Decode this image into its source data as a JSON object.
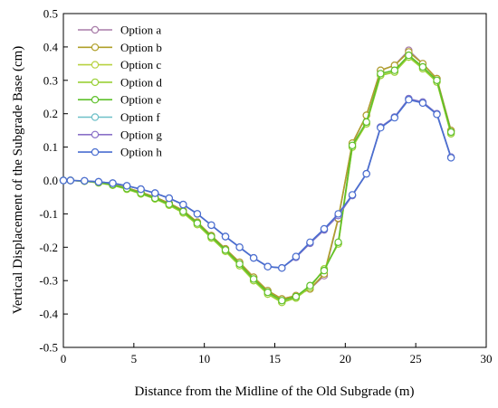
{
  "chart_data": {
    "type": "line",
    "title": "",
    "xlabel": "Distance from the Midline of the Old Subgrade (m)",
    "ylabel": "Vertical Displacement of the Subgrade Base (cm)",
    "xlim": [
      0,
      30
    ],
    "ylim": [
      -0.5,
      0.5
    ],
    "xticks": [
      0,
      5,
      10,
      15,
      20,
      25,
      30
    ],
    "yticks": [
      -0.5,
      -0.4,
      -0.3,
      -0.2,
      -0.1,
      0.0,
      0.1,
      0.2,
      0.3,
      0.4,
      0.5
    ],
    "ytick_labels": [
      "-0.5",
      "-0.4",
      "-0.3",
      "-0.2",
      "-0.1",
      "0.0",
      "0.1",
      "0.2",
      "0.3",
      "0.4",
      "0.5"
    ],
    "grid": false,
    "legend_position": "top-left",
    "x": [
      0,
      0.5,
      1.5,
      2.5,
      3.5,
      4.5,
      5.5,
      6.5,
      7.5,
      8.5,
      9.5,
      10.5,
      11.5,
      12.5,
      13.5,
      14.5,
      15.5,
      16.5,
      17.5,
      18.5,
      19.5,
      20.5,
      21.5,
      22.5,
      23.5,
      24.5,
      25.5,
      26.5,
      27.5
    ],
    "series": [
      {
        "name": "Option a",
        "color": "#a87ca8",
        "values": [
          0,
          0,
          -0.002,
          -0.006,
          -0.012,
          -0.022,
          -0.035,
          -0.05,
          -0.068,
          -0.09,
          -0.125,
          -0.165,
          -0.205,
          -0.245,
          -0.29,
          -0.33,
          -0.355,
          -0.345,
          -0.325,
          -0.285,
          -0.115,
          0.11,
          0.195,
          0.33,
          0.345,
          0.39,
          0.35,
          0.305,
          0.15
        ]
      },
      {
        "name": "Option b",
        "color": "#b0a02a",
        "values": [
          0,
          0,
          -0.002,
          -0.006,
          -0.012,
          -0.022,
          -0.035,
          -0.05,
          -0.068,
          -0.09,
          -0.125,
          -0.165,
          -0.205,
          -0.245,
          -0.29,
          -0.33,
          -0.355,
          -0.345,
          -0.325,
          -0.28,
          -0.113,
          0.112,
          0.195,
          0.33,
          0.345,
          0.385,
          0.35,
          0.305,
          0.15
        ]
      },
      {
        "name": "Option c",
        "color": "#b8d240",
        "values": [
          0,
          0,
          -0.002,
          -0.007,
          -0.014,
          -0.026,
          -0.04,
          -0.055,
          -0.074,
          -0.097,
          -0.132,
          -0.172,
          -0.212,
          -0.255,
          -0.3,
          -0.34,
          -0.365,
          -0.352,
          -0.32,
          -0.265,
          -0.19,
          0.1,
          0.17,
          0.315,
          0.325,
          0.37,
          0.335,
          0.295,
          0.14
        ]
      },
      {
        "name": "Option d",
        "color": "#9ad036",
        "values": [
          0,
          0,
          -0.002,
          -0.007,
          -0.014,
          -0.026,
          -0.04,
          -0.055,
          -0.074,
          -0.097,
          -0.132,
          -0.172,
          -0.212,
          -0.255,
          -0.3,
          -0.34,
          -0.365,
          -0.352,
          -0.32,
          -0.265,
          -0.19,
          0.1,
          0.17,
          0.315,
          0.325,
          0.37,
          0.335,
          0.295,
          0.14
        ]
      },
      {
        "name": "Option e",
        "color": "#5ec02a",
        "values": [
          0,
          0,
          -0.002,
          -0.006,
          -0.013,
          -0.024,
          -0.038,
          -0.053,
          -0.071,
          -0.093,
          -0.128,
          -0.168,
          -0.208,
          -0.25,
          -0.295,
          -0.335,
          -0.36,
          -0.348,
          -0.315,
          -0.27,
          -0.185,
          0.105,
          0.175,
          0.32,
          0.33,
          0.375,
          0.34,
          0.3,
          0.145
        ]
      },
      {
        "name": "Option f",
        "color": "#6ec0c8",
        "values": [
          0,
          0,
          -0.001,
          -0.004,
          -0.008,
          -0.016,
          -0.026,
          -0.038,
          -0.053,
          -0.072,
          -0.1,
          -0.134,
          -0.168,
          -0.2,
          -0.232,
          -0.258,
          -0.262,
          -0.23,
          -0.188,
          -0.148,
          -0.105,
          -0.045,
          0.02,
          0.16,
          0.19,
          0.245,
          0.235,
          0.2,
          0.07
        ]
      },
      {
        "name": "Option g",
        "color": "#8a70c8",
        "values": [
          0,
          0,
          -0.001,
          -0.004,
          -0.008,
          -0.016,
          -0.026,
          -0.038,
          -0.053,
          -0.072,
          -0.1,
          -0.134,
          -0.168,
          -0.2,
          -0.232,
          -0.258,
          -0.262,
          -0.23,
          -0.188,
          -0.148,
          -0.105,
          -0.045,
          0.02,
          0.16,
          0.19,
          0.245,
          0.235,
          0.2,
          0.07
        ]
      },
      {
        "name": "Option h",
        "color": "#4a6ed0",
        "values": [
          0,
          0,
          -0.001,
          -0.004,
          -0.008,
          -0.016,
          -0.026,
          -0.038,
          -0.053,
          -0.072,
          -0.1,
          -0.134,
          -0.168,
          -0.2,
          -0.232,
          -0.258,
          -0.262,
          -0.228,
          -0.185,
          -0.145,
          -0.1,
          -0.043,
          0.02,
          0.158,
          0.188,
          0.242,
          0.232,
          0.198,
          0.068
        ]
      }
    ]
  }
}
